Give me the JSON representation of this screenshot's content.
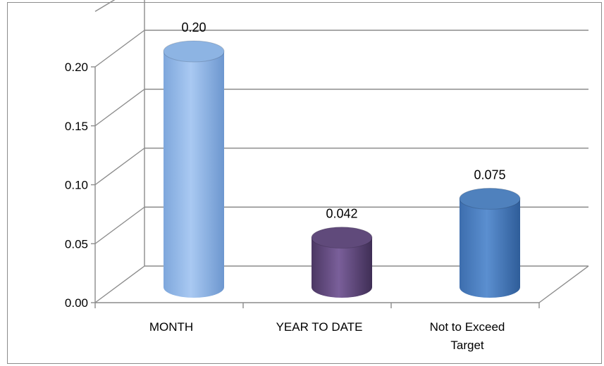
{
  "chart_data": {
    "type": "bar",
    "style": "3d-cylinder",
    "categories": [
      "MONTH",
      "YEAR TO DATE",
      "Not to Exceed Target"
    ],
    "series": [
      {
        "values": [
          0.2,
          0.042,
          0.075
        ],
        "colors": [
          "#8db4e3",
          "#604a7b",
          "#4f81bd"
        ]
      }
    ],
    "data_labels": [
      "0.20",
      "0.042",
      "0.075"
    ],
    "y_ticks": [
      "0.00",
      "0.05",
      "0.10",
      "0.15",
      "0.20"
    ],
    "ylim": [
      0,
      0.2
    ],
    "grid": true,
    "legend": false,
    "title": "",
    "xlabel": "",
    "ylabel": ""
  }
}
